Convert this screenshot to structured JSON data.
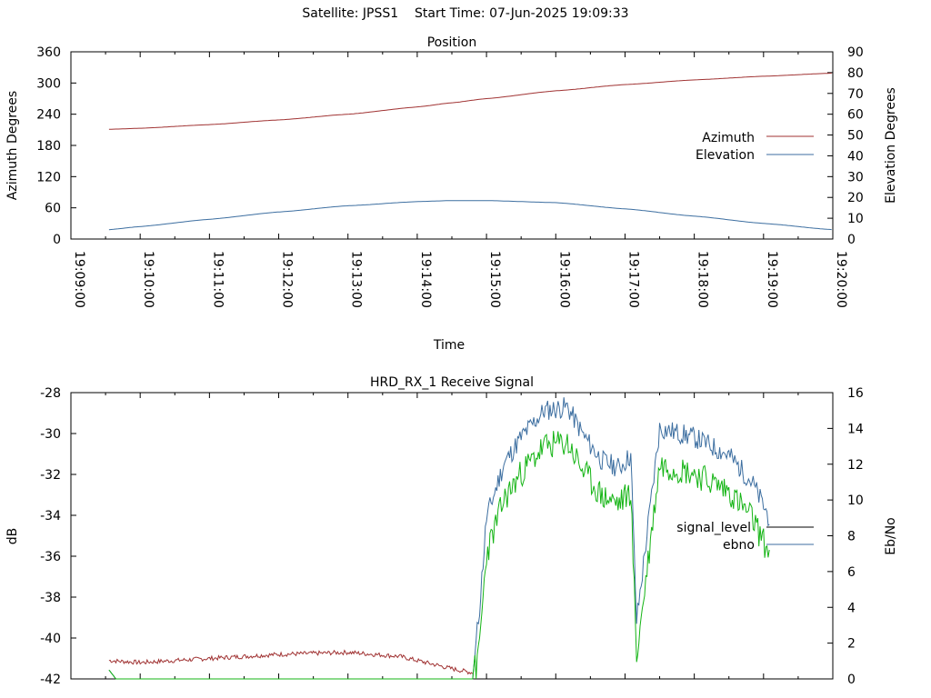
{
  "header": {
    "satellite_label": "Satellite: JPSS1",
    "start_time_label": "Start Time: 07-Jun-2025 19:09:33"
  },
  "colors": {
    "azimuth": "#a03232",
    "elevation": "#3c6ea0",
    "signal_level": "#a03232",
    "ebno_blue": "#3c6ea0",
    "ebno_green": "#14b414",
    "axis": "#000000"
  },
  "chart_data": [
    {
      "type": "line",
      "title": "Position",
      "xlabel": "Time",
      "ylabel": "Azimuth Degrees",
      "y2label": "Elevation Degrees",
      "xlim": [
        "19:09:00",
        "19:20:00"
      ],
      "ylim": [
        0,
        360
      ],
      "y2lim": [
        0,
        90
      ],
      "x_ticks": [
        "19:09:00",
        "19:10:00",
        "19:11:00",
        "19:12:00",
        "19:13:00",
        "19:14:00",
        "19:15:00",
        "19:16:00",
        "19:17:00",
        "19:18:00",
        "19:19:00",
        "19:20:00"
      ],
      "y_ticks": [
        0,
        60,
        120,
        180,
        240,
        300,
        360
      ],
      "y2_ticks": [
        0,
        10,
        20,
        30,
        40,
        50,
        60,
        70,
        80,
        90
      ],
      "legend_position": "right",
      "grid": false,
      "series": [
        {
          "name": "Azimuth",
          "axis": "y",
          "x": [
            "19:09:33",
            "19:10:00",
            "19:11:00",
            "19:12:00",
            "19:13:00",
            "19:14:00",
            "19:14:30",
            "19:15:00",
            "19:16:00",
            "19:17:00",
            "19:18:00",
            "19:19:00",
            "19:20:00"
          ],
          "values": [
            211,
            213,
            220,
            229,
            240,
            254,
            262,
            270,
            285,
            297,
            306,
            313,
            319
          ]
        },
        {
          "name": "Elevation",
          "axis": "y2",
          "x": [
            "19:09:33",
            "19:10:00",
            "19:11:00",
            "19:12:00",
            "19:13:00",
            "19:14:00",
            "19:14:30",
            "19:15:00",
            "19:16:00",
            "19:17:00",
            "19:18:00",
            "19:19:00",
            "19:20:00"
          ],
          "values": [
            4.5,
            6,
            9.5,
            13,
            16,
            18,
            18.5,
            18.5,
            17.5,
            14.5,
            11,
            7.5,
            4.5
          ]
        }
      ]
    },
    {
      "type": "line",
      "title": "HRD_RX_1 Receive Signal",
      "ylabel": "dB",
      "y2label": "Eb/No",
      "xlim": [
        "19:09:00",
        "19:20:00"
      ],
      "ylim": [
        -42,
        -28
      ],
      "y2lim": [
        0,
        16
      ],
      "y_ticks": [
        -42,
        -40,
        -38,
        -36,
        -34,
        -32,
        -30,
        -28
      ],
      "y2_ticks": [
        0,
        2,
        4,
        6,
        8,
        10,
        12,
        14,
        16
      ],
      "legend_position": "right",
      "grid": false,
      "series": [
        {
          "name": "signal_level",
          "axis": "y",
          "x": [
            "19:09:33",
            "19:10:00",
            "19:11:00",
            "19:12:00",
            "19:13:00",
            "19:13:45",
            "19:14:30",
            "19:14:48"
          ],
          "values": [
            -41.1,
            -41.2,
            -41.0,
            -40.8,
            -40.7,
            -40.9,
            -41.5,
            -41.7
          ]
        },
        {
          "name": "ebno",
          "axis": "y2",
          "x": [
            "19:09:33",
            "19:09:39",
            "19:14:48",
            "19:14:54",
            "19:15:00",
            "19:15:15",
            "19:15:30",
            "19:15:50",
            "19:16:10",
            "19:16:25",
            "19:16:40",
            "19:16:55",
            "19:17:05",
            "19:17:10",
            "19:17:30",
            "19:18:00",
            "19:18:30",
            "19:18:50",
            "19:19:05"
          ],
          "values": [
            0.5,
            0,
            0,
            4,
            9,
            12,
            13.5,
            15,
            15.2,
            13.5,
            12.2,
            11.8,
            12.5,
            3.2,
            14,
            13.5,
            12.5,
            11,
            9
          ]
        }
      ]
    }
  ]
}
